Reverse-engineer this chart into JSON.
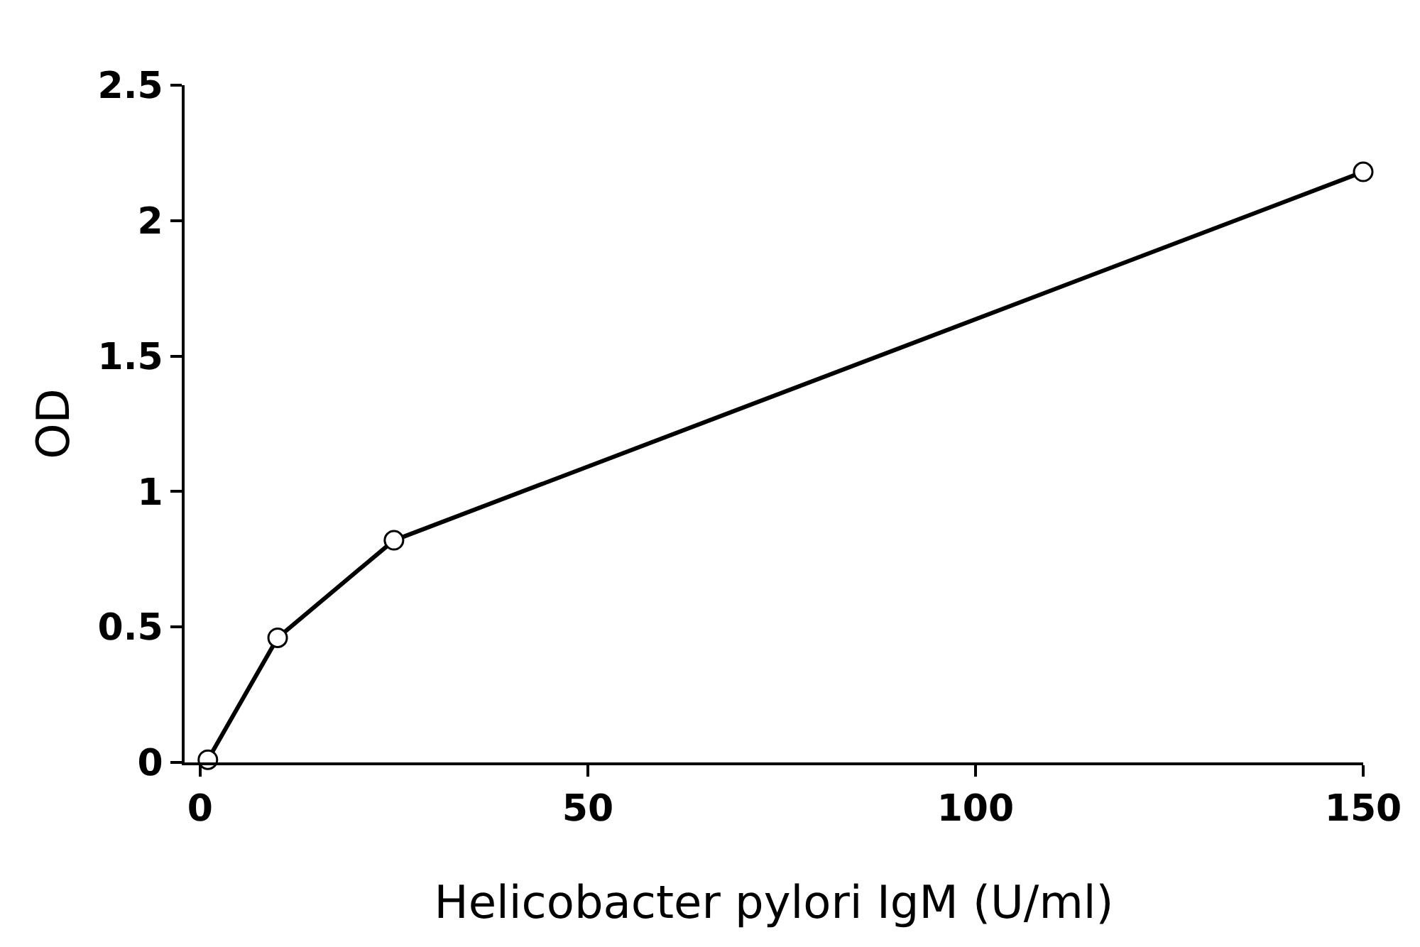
{
  "chart_data": {
    "type": "line",
    "xlabel": "Helicobacter pylori IgM (U/ml)",
    "ylabel": "OD",
    "series": [
      {
        "x": [
          1,
          10,
          25,
          150
        ],
        "values": [
          0.01,
          0.46,
          0.82,
          2.18
        ],
        "color": "#000000"
      }
    ],
    "xlim": [
      -2,
      150
    ],
    "xticks": [
      0,
      50,
      100,
      150
    ],
    "ylim": [
      0,
      2.5
    ],
    "yticks": [
      0,
      0.5,
      1,
      1.5,
      2,
      2.5
    ],
    "legend": false,
    "marker": "circle",
    "line_style": "solid"
  }
}
